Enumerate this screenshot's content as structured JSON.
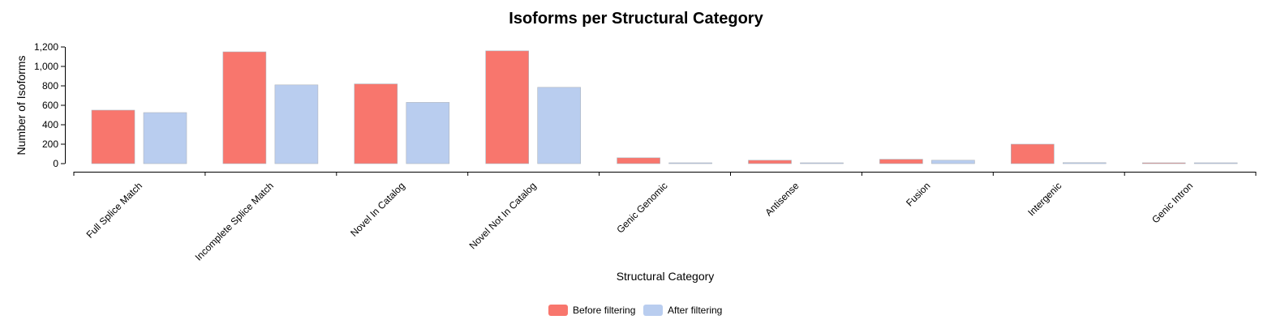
{
  "chart_data": {
    "type": "bar",
    "title": "Isoforms per Structural Category",
    "xlabel": "Structural Category",
    "ylabel": "Number of Isoforms",
    "ylim": [
      0,
      1200
    ],
    "yticks": [
      "0",
      "200",
      "400",
      "600",
      "800",
      "1,000",
      "1,200"
    ],
    "categories": [
      "Full Splice Match",
      "Incomplete Splice Match",
      "Novel In Catalog",
      "Novel Not In Catalog",
      "Genic Genomic",
      "Antisense",
      "Fusion",
      "Intergenic",
      "Genic Intron"
    ],
    "series": [
      {
        "name": "Before filtering",
        "color": "#f8766d",
        "values": [
          550,
          1150,
          820,
          1160,
          60,
          35,
          45,
          200,
          4
        ]
      },
      {
        "name": "After filtering",
        "color": "#b9cdef",
        "values": [
          525,
          810,
          630,
          785,
          5,
          8,
          35,
          10,
          3
        ]
      }
    ],
    "grid": false,
    "legend_position": "bottom-center"
  }
}
